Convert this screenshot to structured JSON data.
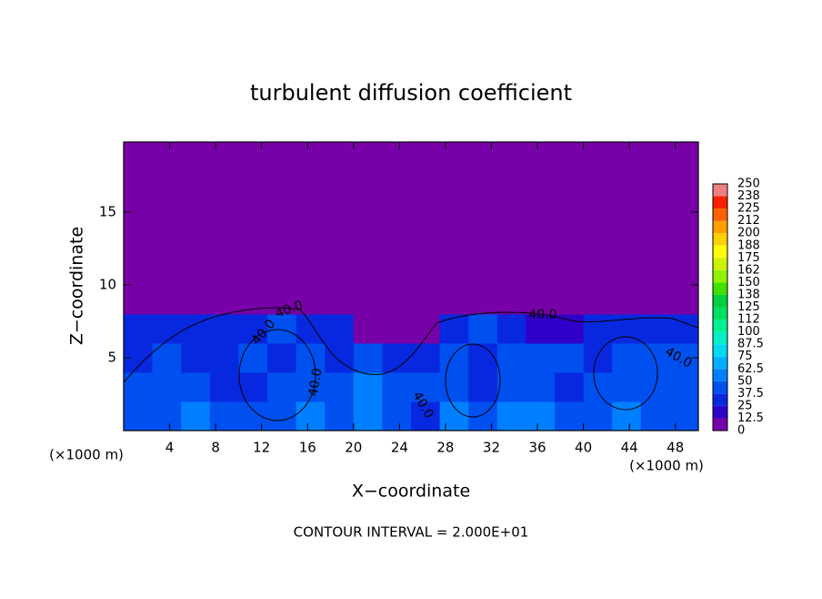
{
  "chart_data": {
    "type": "heatmap",
    "title": "turbulent diffusion coefficient",
    "xlabel": "X−coordinate",
    "ylabel": "Z−coordinate",
    "x_unit": "(×1000 m)",
    "y_unit": "(×1000 m)",
    "footnote": "CONTOUR INTERVAL = 2.000E+01",
    "xlim": [
      0,
      50
    ],
    "ylim": [
      0,
      19.8
    ],
    "xticks": [
      4,
      8,
      12,
      16,
      20,
      24,
      28,
      32,
      36,
      40,
      44,
      48
    ],
    "yticks": [
      5,
      10,
      15
    ],
    "x": [
      1.25,
      3.75,
      6.25,
      8.75,
      11.25,
      13.75,
      16.25,
      18.75,
      21.25,
      23.75,
      26.25,
      28.75,
      31.25,
      33.75,
      36.25,
      38.75,
      41.25,
      43.75,
      46.25,
      48.75
    ],
    "y": [
      1,
      3,
      5,
      7,
      9,
      11,
      13,
      15,
      17,
      19
    ],
    "z": [
      [
        45,
        40,
        50,
        45,
        40,
        45,
        50,
        45,
        55,
        40,
        35,
        50,
        45,
        60,
        50,
        40,
        45,
        50,
        45,
        45
      ],
      [
        40,
        45,
        40,
        35,
        35,
        40,
        40,
        45,
        50,
        40,
        45,
        40,
        35,
        45,
        40,
        35,
        45,
        40,
        40,
        45
      ],
      [
        35,
        40,
        35,
        35,
        40,
        35,
        40,
        35,
        40,
        30,
        35,
        40,
        35,
        40,
        45,
        40,
        35,
        40,
        40,
        40
      ],
      [
        30,
        30,
        25,
        35,
        35,
        40,
        35,
        30,
        10,
        5,
        5,
        30,
        40,
        35,
        20,
        15,
        35,
        35,
        30,
        35
      ],
      [
        0,
        0,
        0,
        0,
        5,
        5,
        0,
        0,
        0,
        0,
        0,
        0,
        0,
        0,
        0,
        0,
        0,
        0,
        0,
        0
      ],
      [
        0,
        0,
        0,
        0,
        0,
        0,
        0,
        0,
        0,
        0,
        0,
        0,
        0,
        0,
        0,
        0,
        0,
        0,
        0,
        0
      ],
      [
        0,
        0,
        0,
        0,
        0,
        0,
        0,
        0,
        0,
        0,
        0,
        0,
        0,
        0,
        0,
        0,
        0,
        0,
        0,
        0
      ],
      [
        0,
        0,
        0,
        0,
        0,
        0,
        0,
        0,
        0,
        0,
        0,
        0,
        0,
        0,
        0,
        0,
        0,
        0,
        0,
        0
      ],
      [
        0,
        0,
        0,
        0,
        0,
        0,
        0,
        0,
        0,
        0,
        0,
        0,
        0,
        0,
        0,
        0,
        0,
        0,
        0,
        0
      ],
      [
        0,
        0,
        0,
        0,
        0,
        0,
        0,
        0,
        0,
        0,
        0,
        0,
        0,
        0,
        0,
        0,
        0,
        0,
        0,
        0
      ]
    ],
    "levels": [
      0,
      12.5,
      25,
      {
        "value": 37.5,
        "label": "37.5"
      },
      50,
      {
        "value": 62.5,
        "label": "62.5"
      },
      75,
      {
        "value": 87.5,
        "label": "87.5"
      },
      100,
      {
        "value": 112.5,
        "label": "112"
      },
      125,
      {
        "value": 137.5,
        "label": "138"
      },
      150,
      {
        "value": 162.5,
        "label": "162"
      },
      175,
      {
        "value": 187.5,
        "label": "188"
      },
      200,
      {
        "value": 212.5,
        "label": "212"
      },
      225,
      {
        "value": 237.5,
        "label": "238"
      },
      250
    ],
    "colors": [
      "#7800a8",
      "#3000c8",
      "#0828e0",
      "#0050f0",
      "#0080ff",
      "#00b0ff",
      "#00d8f0",
      "#00f0c8",
      "#00f090",
      "#00e060",
      "#00d040",
      "#40e000",
      "#90f000",
      "#d0f000",
      "#ffff00",
      "#ffd000",
      "#ffa000",
      "#ff6000",
      "#ff2000",
      "#f08080"
    ],
    "annotations": [
      "40.0",
      "40.0",
      "40.0",
      "40.0",
      "40.0",
      "40.0"
    ]
  }
}
